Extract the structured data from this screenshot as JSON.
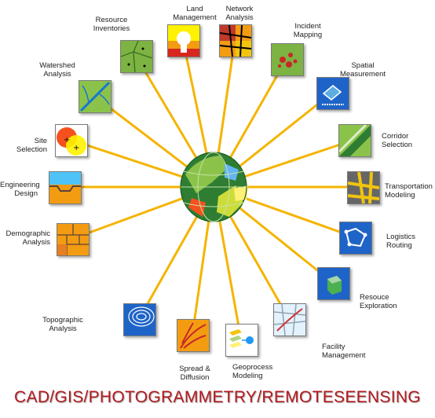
{
  "title": "CAD/GIS/PHOTOGRAMMETRY/REMOTESEENSING",
  "center": {
    "icon": "globe-icon"
  },
  "spokes": [
    {
      "key": "land-management",
      "label": "Land\nManagement",
      "icon": "land-management-icon",
      "colors": [
        "#f39c12",
        "#d7261e",
        "#fff200"
      ]
    },
    {
      "key": "network-analysis",
      "label": "Network\nAnalysis",
      "icon": "network-analysis-icon",
      "colors": [
        "#f39c12",
        "#c0392b",
        "#f1c40f"
      ]
    },
    {
      "key": "incident-mapping",
      "label": "Incident\nMapping",
      "icon": "incident-mapping-icon",
      "colors": [
        "#7cb342",
        "#c62828"
      ]
    },
    {
      "key": "spatial-measurement",
      "label": "Spatial\nMeasurement",
      "icon": "spatial-measurement-icon",
      "colors": [
        "#1e64c8",
        "#ffffff"
      ]
    },
    {
      "key": "corridor-selection",
      "label": "Corridor\nSelection",
      "icon": "corridor-selection-icon",
      "colors": [
        "#8bc34a",
        "#2e7d32"
      ]
    },
    {
      "key": "transportation-modeling",
      "label": "Transportation\nModeling",
      "icon": "transportation-modeling-icon",
      "colors": [
        "#666666",
        "#f1c40f"
      ]
    },
    {
      "key": "logistics-routing",
      "label": "Logistics\nRouting",
      "icon": "logistics-routing-icon",
      "colors": [
        "#1e64c8",
        "#ffffff"
      ]
    },
    {
      "key": "resouce-exploration",
      "label": "Resouce\nExploration",
      "icon": "resource-exploration-icon",
      "colors": [
        "#1e64c8",
        "#4caf50"
      ]
    },
    {
      "key": "facility-management",
      "label": "Facility\nManagement",
      "icon": "facility-management-icon",
      "colors": [
        "#e3f2fd",
        "#d32f2f"
      ]
    },
    {
      "key": "geoprocess-modeling",
      "label": "Geoprocess\nModeling",
      "icon": "geoprocess-modeling-icon",
      "colors": [
        "#f1c40f",
        "#2196f3"
      ]
    },
    {
      "key": "spread-diffusion",
      "label": "Spread &\nDiffusion",
      "icon": "spread-diffusion-icon",
      "colors": [
        "#f39c12",
        "#c62828"
      ]
    },
    {
      "key": "topographic-analysis",
      "label": "Topographic\nAnalysis",
      "icon": "topographic-analysis-icon",
      "colors": [
        "#1e64c8",
        "#ffffff"
      ]
    },
    {
      "key": "demographic-analysis",
      "label": "Demographic\nAnalysis",
      "icon": "demographic-analysis-icon",
      "colors": [
        "#f39c12",
        "#e67e22"
      ]
    },
    {
      "key": "engineering-design",
      "label": "Engineering\nDesign",
      "icon": "engineering-design-icon",
      "colors": [
        "#f39c12",
        "#4fc3f7"
      ]
    },
    {
      "key": "site-selection",
      "label": "Site\nSelection",
      "icon": "site-selection-icon",
      "colors": [
        "#f4511e",
        "#fff200"
      ]
    },
    {
      "key": "watershed-analysis",
      "label": "Watershed\nAnalysis",
      "icon": "watershed-analysis-icon",
      "colors": [
        "#1976d2",
        "#8bc34a"
      ]
    },
    {
      "key": "resource-inventories",
      "label": "Resource\nInventories",
      "icon": "resource-inventories-icon",
      "colors": [
        "#7cb342",
        "#33691e"
      ]
    }
  ],
  "colors": {
    "spoke": "#f5b400",
    "banner": "#b3191e"
  }
}
